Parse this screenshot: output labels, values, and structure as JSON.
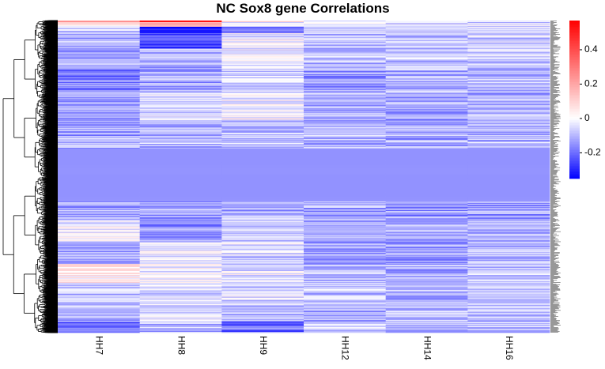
{
  "chart_data": {
    "type": "heatmap",
    "title": "NC Sox8 gene Correlations",
    "columns": [
      "HH7",
      "HH8",
      "HH9",
      "HH12",
      "HH14",
      "HH16"
    ],
    "color_scale": {
      "min": -0.35,
      "max": 0.57,
      "low_color": "#0000ff",
      "mid_color": "#ffffff",
      "high_color": "#ff0000",
      "ticks": [
        0.4,
        0.2,
        0,
        -0.2
      ],
      "tick_labels": [
        "0.4",
        "0.2",
        "0",
        "-0.2"
      ]
    },
    "row_dendrogram": true,
    "row_labels_legible": false,
    "rows_approx": 400,
    "row_blocks": [
      {
        "from": 0.0,
        "to": 0.006,
        "values": [
          0.3,
          0.48,
          0.08,
          -0.02,
          -0.05,
          -0.04
        ]
      },
      {
        "from": 0.006,
        "to": 0.02,
        "values": [
          0.05,
          0.2,
          -0.06,
          -0.03,
          -0.05,
          -0.05
        ]
      },
      {
        "from": 0.02,
        "to": 0.04,
        "values": [
          -0.08,
          -0.3,
          -0.2,
          -0.05,
          -0.07,
          -0.06
        ]
      },
      {
        "from": 0.04,
        "to": 0.09,
        "values": [
          -0.1,
          -0.26,
          -0.02,
          -0.08,
          -0.09,
          -0.06
        ]
      },
      {
        "from": 0.09,
        "to": 0.15,
        "values": [
          -0.13,
          -0.08,
          -0.03,
          -0.1,
          -0.08,
          -0.07
        ]
      },
      {
        "from": 0.15,
        "to": 0.23,
        "values": [
          -0.18,
          -0.12,
          -0.06,
          -0.14,
          -0.11,
          -0.09
        ]
      },
      {
        "from": 0.23,
        "to": 0.32,
        "values": [
          -0.14,
          -0.05,
          -0.01,
          -0.11,
          -0.13,
          -0.1
        ]
      },
      {
        "from": 0.32,
        "to": 0.41,
        "values": [
          -0.12,
          -0.09,
          -0.08,
          -0.1,
          -0.11,
          -0.1
        ]
      },
      {
        "from": 0.41,
        "to": 0.58,
        "values": [
          -0.15,
          -0.15,
          -0.15,
          -0.15,
          -0.15,
          -0.15
        ]
      },
      {
        "from": 0.58,
        "to": 0.64,
        "values": [
          -0.12,
          -0.14,
          -0.11,
          -0.12,
          -0.14,
          -0.13
        ]
      },
      {
        "from": 0.64,
        "to": 0.71,
        "values": [
          -0.02,
          -0.15,
          -0.06,
          -0.13,
          -0.12,
          -0.1
        ]
      },
      {
        "from": 0.71,
        "to": 0.78,
        "values": [
          -0.11,
          -0.02,
          -0.05,
          -0.14,
          -0.13,
          -0.1
        ]
      },
      {
        "from": 0.78,
        "to": 0.84,
        "values": [
          0.04,
          0.0,
          -0.03,
          -0.1,
          -0.12,
          -0.09
        ]
      },
      {
        "from": 0.84,
        "to": 0.93,
        "values": [
          -0.09,
          -0.06,
          -0.06,
          -0.08,
          -0.1,
          -0.09
        ]
      },
      {
        "from": 0.93,
        "to": 0.965,
        "values": [
          -0.12,
          -0.05,
          -0.1,
          -0.12,
          -0.09,
          -0.09
        ]
      },
      {
        "from": 0.965,
        "to": 1.0,
        "values": [
          -0.22,
          -0.1,
          -0.2,
          -0.07,
          -0.1,
          -0.08
        ]
      }
    ]
  }
}
